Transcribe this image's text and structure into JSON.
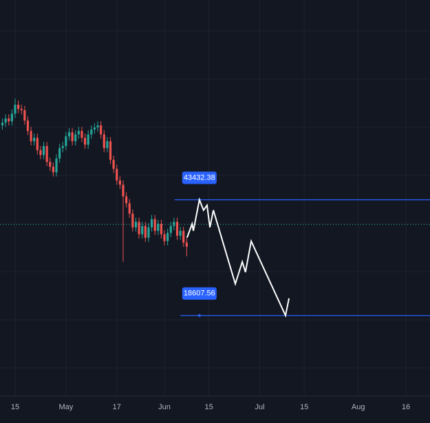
{
  "chart_data": {
    "type": "candlestick",
    "x": [
      10,
      11,
      12,
      13,
      14,
      15,
      16,
      17,
      18,
      19,
      20,
      21,
      22,
      23,
      24,
      25,
      26,
      27,
      28,
      29,
      30,
      31,
      32,
      33,
      34,
      35,
      36,
      37,
      38,
      39,
      40,
      41,
      42,
      43,
      44,
      45,
      46,
      47,
      48,
      49,
      50,
      51,
      52,
      53,
      54,
      55,
      56,
      57,
      58,
      59,
      60,
      61,
      62,
      63,
      64,
      65,
      66,
      67,
      68
    ],
    "open": [
      59400,
      59990,
      60870,
      60280,
      61910,
      63830,
      62940,
      62650,
      60430,
      58210,
      56000,
      56730,
      54070,
      53040,
      54960,
      51560,
      50530,
      49340,
      52300,
      54520,
      54960,
      57030,
      57920,
      56000,
      57470,
      58210,
      56730,
      55260,
      57470,
      58510,
      58950,
      59400,
      57470,
      54520,
      56000,
      52000,
      50080,
      47570,
      46680,
      44170,
      42690,
      40470,
      37520,
      38700,
      36040,
      37810,
      35300,
      37520,
      39290,
      36780,
      38260,
      36040,
      34560,
      36330,
      37810,
      38700,
      35740,
      36780,
      34260
    ],
    "high": [
      60890,
      61770,
      61770,
      62810,
      65160,
      64730,
      63840,
      63550,
      61330,
      59110,
      57630,
      57630,
      54970,
      55860,
      55860,
      52460,
      51430,
      53200,
      55420,
      55860,
      57930,
      58820,
      58820,
      58370,
      59110,
      59110,
      57630,
      58370,
      59410,
      59850,
      60300,
      60300,
      58370,
      56900,
      56900,
      52900,
      50980,
      48470,
      47580,
      45070,
      43590,
      41370,
      39600,
      39600,
      38710,
      38710,
      38420,
      40190,
      40190,
      39160,
      39160,
      36940,
      37230,
      38710,
      39600,
      39600,
      37680,
      37680,
      35160
    ],
    "low": [
      58500,
      59090,
      59380,
      59380,
      61010,
      62040,
      61750,
      59530,
      57310,
      55100,
      55100,
      53170,
      52140,
      52140,
      50660,
      49630,
      48440,
      48440,
      51400,
      53620,
      54060,
      56130,
      55100,
      55100,
      56570,
      55830,
      54360,
      54360,
      56570,
      57610,
      58050,
      56570,
      53620,
      53620,
      51100,
      49180,
      46670,
      45780,
      30130,
      41790,
      39570,
      36620,
      36620,
      35140,
      35140,
      34400,
      34400,
      36620,
      35880,
      35880,
      35140,
      33660,
      33660,
      35430,
      36910,
      34840,
      34840,
      33360,
      31310
    ],
    "close": [
      59990,
      60870,
      60280,
      61910,
      63830,
      62940,
      62650,
      60430,
      58210,
      56000,
      56730,
      54070,
      53040,
      54960,
      51560,
      50530,
      49340,
      52300,
      54520,
      54960,
      57030,
      57920,
      56000,
      57470,
      58210,
      56730,
      55260,
      57470,
      58510,
      58950,
      59400,
      57470,
      54520,
      56000,
      52000,
      50080,
      47570,
      46680,
      44170,
      42690,
      40470,
      37520,
      38700,
      36040,
      37810,
      35300,
      37520,
      39290,
      36780,
      38260,
      36040,
      34560,
      36330,
      37810,
      38700,
      35740,
      36780,
      34260,
      33380
    ],
    "up_color": "#26a69a",
    "down_color": "#ef5350",
    "last_price": 38110,
    "projection": {
      "x": [
        68.1,
        69.7,
        70.1,
        72.0,
        73.3,
        74.4,
        75.3,
        76.4,
        83.3,
        85.5,
        86.5,
        88.3,
        99.1,
        100.2
      ],
      "values": [
        35300,
        38260,
        36780,
        43430,
        41210,
        42250,
        37520,
        41210,
        25390,
        30130,
        27910,
        34560,
        18610,
        22290
      ],
      "color": "#ffffff"
    },
    "levels": [
      {
        "value": 43432.38,
        "from": 64.2,
        "label_x": 72.0
      },
      {
        "value": 18607.56,
        "from": 66.0,
        "label_x": 72.0
      }
    ],
    "level_color": "#2962ff",
    "xlim": [
      9.24,
      144.58
    ],
    "ylim": [
      1300,
      86300
    ],
    "xticks": [
      {
        "value": 14,
        "label": "15"
      },
      {
        "value": 30,
        "label": "May"
      },
      {
        "value": 46,
        "label": "17"
      },
      {
        "value": 61,
        "label": "Jun"
      },
      {
        "value": 75,
        "label": "15"
      },
      {
        "value": 91,
        "label": "Jul"
      },
      {
        "value": 105,
        "label": "15"
      },
      {
        "value": 122,
        "label": "Aug"
      },
      {
        "value": 137,
        "label": "16"
      }
    ],
    "grid": true
  }
}
